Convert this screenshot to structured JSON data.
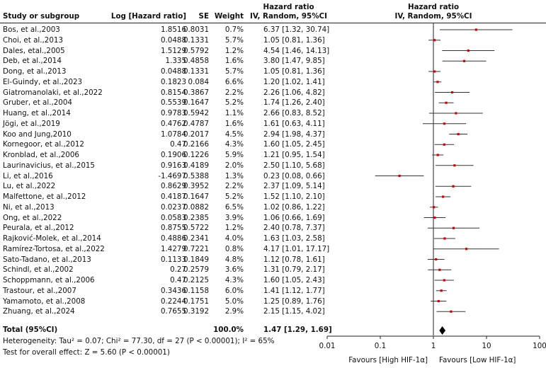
{
  "header": {
    "study": "Study or subgroup",
    "loghr": "Log [Hazard ratio]",
    "se": "SE",
    "weight": "Weight",
    "hr_line1": "Hazard ratio",
    "hr_line2": "IV, Random, 95%CI",
    "plot_line1": "Hazard ratio",
    "plot_line2": "IV, Random, 95%CI"
  },
  "studies": [
    {
      "name": "Bos, et al.,2003",
      "loghr": "1.8516",
      "se": "0.8031",
      "weight": "0.7%",
      "ci_text": "6.37 [1.32, 30.74]",
      "hr": 6.37,
      "lo": 1.32,
      "hi": 30.74
    },
    {
      "name": "Choi, et al.,2013",
      "loghr": "0.0488",
      "se": "0.1331",
      "weight": "5.7%",
      "ci_text": "1.05 [0.81, 1.36]",
      "hr": 1.05,
      "lo": 0.81,
      "hi": 1.36
    },
    {
      "name": "Dales, etal.,2005",
      "loghr": "1.5129",
      "se": "0.5792",
      "weight": "1.2%",
      "ci_text": "4.54 [1.46, 14.13]",
      "hr": 4.54,
      "lo": 1.46,
      "hi": 14.13
    },
    {
      "name": "Deb, et al.,2014",
      "loghr": "1.335",
      "se": "0.4858",
      "weight": "1.6%",
      "ci_text": "3.80 [1.47, 9.85]",
      "hr": 3.8,
      "lo": 1.47,
      "hi": 9.85
    },
    {
      "name": "Dong, et al.,2013",
      "loghr": "0.0488",
      "se": "0.1331",
      "weight": "5.7%",
      "ci_text": "1.05 [0.81, 1.36]",
      "hr": 1.05,
      "lo": 0.81,
      "hi": 1.36
    },
    {
      "name": "El-Guindy, et al.,2023",
      "loghr": "0.1823",
      "se": "0.084",
      "weight": "6.6%",
      "ci_text": "1.20 [1.02, 1.41]",
      "hr": 1.2,
      "lo": 1.02,
      "hi": 1.41
    },
    {
      "name": "Giatromanolaki, et al.,2022",
      "loghr": "0.8154",
      "se": "0.3867",
      "weight": "2.2%",
      "ci_text": "2.26 [1.06, 4.82]",
      "hr": 2.26,
      "lo": 1.06,
      "hi": 4.82
    },
    {
      "name": "Gruber, et al.,2004",
      "loghr": "0.5539",
      "se": "0.1647",
      "weight": "5.2%",
      "ci_text": "1.74 [1.26, 2.40]",
      "hr": 1.74,
      "lo": 1.26,
      "hi": 2.4
    },
    {
      "name": "Huang, et al.,2014",
      "loghr": "0.9783",
      "se": "0.5942",
      "weight": "1.1%",
      "ci_text": "2.66 [0.83, 8.52]",
      "hr": 2.66,
      "lo": 0.83,
      "hi": 8.52
    },
    {
      "name": "Jögi, et al.,2019",
      "loghr": "0.4762",
      "se": "0.4787",
      "weight": "1.6%",
      "ci_text": "1.61 [0.63, 4.11]",
      "hr": 1.61,
      "lo": 0.63,
      "hi": 4.11
    },
    {
      "name": "Koo and Jung,2010",
      "loghr": "1.0784",
      "se": "0.2017",
      "weight": "4.5%",
      "ci_text": "2.94 [1.98, 4.37]",
      "hr": 2.94,
      "lo": 1.98,
      "hi": 4.37
    },
    {
      "name": "Kornegoor, et al.,2012",
      "loghr": "0.47",
      "se": "0.2166",
      "weight": "4.3%",
      "ci_text": "1.60 [1.05, 2.45]",
      "hr": 1.6,
      "lo": 1.05,
      "hi": 2.45
    },
    {
      "name": "Kronblad, et al.,2006",
      "loghr": "0.1906",
      "se": "0.1226",
      "weight": "5.9%",
      "ci_text": "1.21 [0.95, 1.54]",
      "hr": 1.21,
      "lo": 0.95,
      "hi": 1.54
    },
    {
      "name": "Laurinavicius, et al.,2015",
      "loghr": "0.9163",
      "se": "0.4189",
      "weight": "2.0%",
      "ci_text": "2.50 [1.10, 5.68]",
      "hr": 2.5,
      "lo": 1.1,
      "hi": 5.68
    },
    {
      "name": "Li, et al.,2016",
      "loghr": "-1.4697",
      "se": "0.5388",
      "weight": "1.3%",
      "ci_text": "0.23 [0.08, 0.66]",
      "hr": 0.23,
      "lo": 0.08,
      "hi": 0.66
    },
    {
      "name": "Lu, et al.,2022",
      "loghr": "0.8629",
      "se": "0.3952",
      "weight": "2.2%",
      "ci_text": "2.37 [1.09, 5.14]",
      "hr": 2.37,
      "lo": 1.09,
      "hi": 5.14
    },
    {
      "name": "Malfettone, et al.,2012",
      "loghr": "0.4187",
      "se": "0.1647",
      "weight": "5.2%",
      "ci_text": "1.52 [1.10, 2.10]",
      "hr": 1.52,
      "lo": 1.1,
      "hi": 2.1
    },
    {
      "name": "Ni, et al.,2013",
      "loghr": "0.0237",
      "se": "0.0882",
      "weight": "6.5%",
      "ci_text": "1.02 [0.86, 1.22]",
      "hr": 1.02,
      "lo": 0.86,
      "hi": 1.22
    },
    {
      "name": "Ong, et al.,2022",
      "loghr": "0.0583",
      "se": "0.2385",
      "weight": "3.9%",
      "ci_text": "1.06 [0.66, 1.69]",
      "hr": 1.06,
      "lo": 0.66,
      "hi": 1.69
    },
    {
      "name": "Peurala, et al.,2012",
      "loghr": "0.8755",
      "se": "0.5722",
      "weight": "1.2%",
      "ci_text": "2.40 [0.78, 7.37]",
      "hr": 2.4,
      "lo": 0.78,
      "hi": 7.37
    },
    {
      "name": "Rajković-Molek, et al.,2014",
      "loghr": "0.4886",
      "se": "0.2341",
      "weight": "4.0%",
      "ci_text": "1.63 [1.03, 2.58]",
      "hr": 1.63,
      "lo": 1.03,
      "hi": 2.58
    },
    {
      "name": "Ramírez-Tortosa, et al.,2022",
      "loghr": "1.4279",
      "se": "0.7221",
      "weight": "0.8%",
      "ci_text": "4.17 [1.01, 17.17]",
      "hr": 4.17,
      "lo": 1.01,
      "hi": 17.17
    },
    {
      "name": "Sato-Tadano, et al.,2013",
      "loghr": "0.1133",
      "se": "0.1849",
      "weight": "4.8%",
      "ci_text": "1.12 [0.78, 1.61]",
      "hr": 1.12,
      "lo": 0.78,
      "hi": 1.61
    },
    {
      "name": "Schindl, et al.,2002",
      "loghr": "0.27",
      "se": "0.2579",
      "weight": "3.6%",
      "ci_text": "1.31 [0.79, 2.17]",
      "hr": 1.31,
      "lo": 0.79,
      "hi": 2.17
    },
    {
      "name": "Schoppmann, et al.,2006",
      "loghr": "0.47",
      "se": "0.2125",
      "weight": "4.3%",
      "ci_text": "1.60 [1.05, 2.43]",
      "hr": 1.6,
      "lo": 1.05,
      "hi": 2.43
    },
    {
      "name": "Trastour, et al.,2007",
      "loghr": "0.3436",
      "se": "0.1158",
      "weight": "6.0%",
      "ci_text": "1.41 [1.12, 1.77]",
      "hr": 1.41,
      "lo": 1.12,
      "hi": 1.77
    },
    {
      "name": "Yamamoto, et al.,2008",
      "loghr": "0.2244",
      "se": "0.1751",
      "weight": "5.0%",
      "ci_text": "1.25 [0.89, 1.76]",
      "hr": 1.25,
      "lo": 0.89,
      "hi": 1.76
    },
    {
      "name": "Zhuang, et al.,2024",
      "loghr": "0.7655",
      "se": "0.3192",
      "weight": "2.9%",
      "ci_text": "2.15 [1.15, 4.02]",
      "hr": 2.15,
      "lo": 1.15,
      "hi": 4.02
    }
  ],
  "total": {
    "label": "Total (95%CI)",
    "weight": "100.0%",
    "ci_text": "1.47 [1.29, 1.69]",
    "hr": 1.47,
    "lo": 1.29,
    "hi": 1.69
  },
  "heterogeneity": "Heterogeneity: Tau² = 0.07; Chi² = 77.30, df = 27 (P < 0.00001); I² = 65%",
  "overall_effect": "Test for overall effect: Z = 5.60 (P < 0.00001)",
  "chart_data": {
    "type": "forest",
    "scale": "log",
    "xlim": [
      0.01,
      100
    ],
    "ticks": [
      0.01,
      0.1,
      1,
      10,
      100
    ],
    "tick_labels": [
      "0.01",
      "0.1",
      "1",
      "10",
      "100"
    ],
    "favours_left": "Favours [High HIF-1α]",
    "favours_right": "Favours [Low HIF-1α]",
    "reference_line": 1,
    "marker_color": "#cc0000"
  }
}
